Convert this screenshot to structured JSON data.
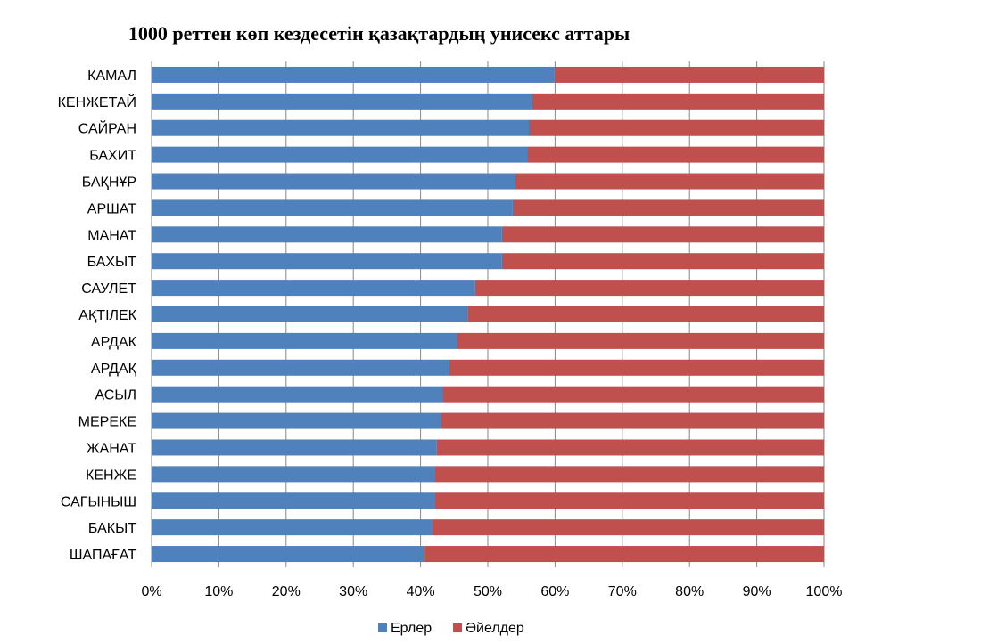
{
  "chart_data": {
    "type": "bar",
    "orientation": "horizontal",
    "stacked": "percent",
    "title": "1000 реттен көп кездесетін қазақтардың унисекс аттары",
    "categories": [
      "КАМАЛ",
      "КЕНЖЕТАЙ",
      "САЙРАН",
      "БАХИТ",
      "БАҚНҰР",
      "АРШАТ",
      "МАНАТ",
      "БАХЫТ",
      "САУЛЕТ",
      "АҚТІЛЕК",
      "АРДАК",
      "АРДАҚ",
      "АСЫЛ",
      "МЕРЕКЕ",
      "ЖАНАТ",
      "КЕНЖЕ",
      "САГЫНЫШ",
      "БАКЫТ",
      "ШАПАҒАТ"
    ],
    "series": [
      {
        "name": "Ерлер",
        "color": "#4f81bd",
        "values": [
          59.9,
          56.6,
          56.1,
          55.9,
          54.1,
          53.7,
          52.1,
          52.1,
          48.1,
          47.0,
          45.4,
          44.2,
          43.3,
          43.0,
          42.4,
          42.1,
          42.1,
          41.7,
          40.6
        ]
      },
      {
        "name": "Әйелдер",
        "color": "#c0504d",
        "values": [
          40.1,
          43.4,
          43.9,
          44.1,
          45.9,
          46.3,
          47.9,
          47.9,
          51.9,
          53.0,
          54.6,
          55.8,
          56.7,
          57.0,
          57.6,
          57.9,
          57.9,
          58.3,
          59.4
        ]
      }
    ],
    "xlim": [
      0,
      100
    ],
    "xticks": [
      "0%",
      "10%",
      "20%",
      "30%",
      "40%",
      "50%",
      "60%",
      "70%",
      "80%",
      "90%",
      "100%"
    ],
    "grid": "vertical",
    "legend": "bottom"
  }
}
